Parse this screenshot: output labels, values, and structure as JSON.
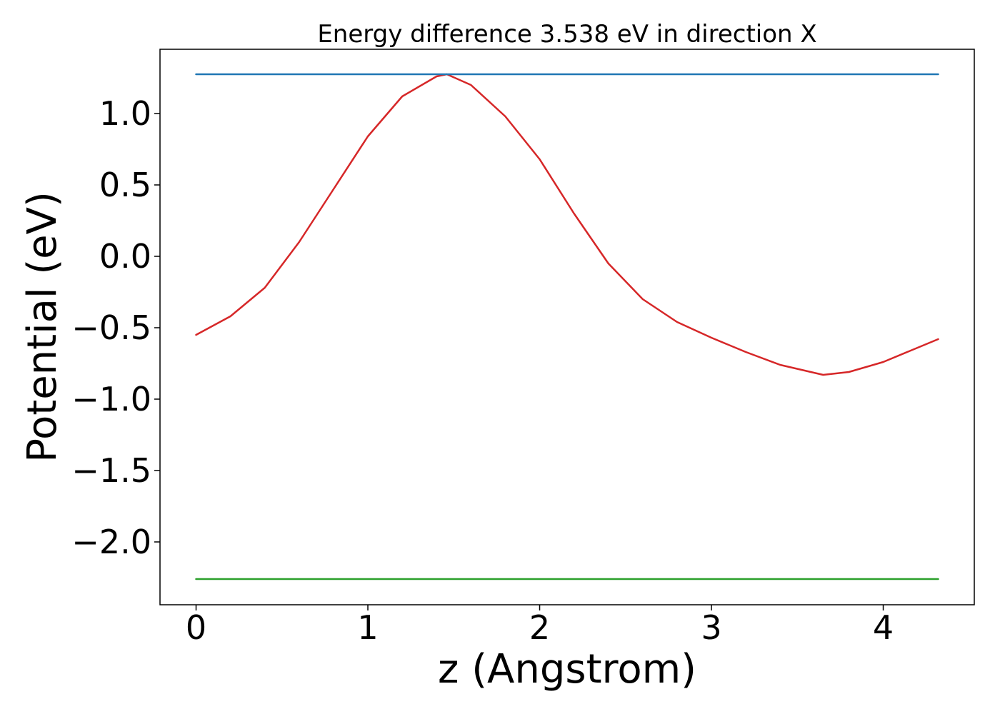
{
  "chart_data": {
    "type": "line",
    "title": "Energy difference 3.538 eV in direction X",
    "xlabel": "z (Angstrom)",
    "ylabel": "Potential (eV)",
    "xlim": [
      -0.21,
      4.53
    ],
    "ylim": [
      -2.44,
      1.45
    ],
    "x_ticks": [
      0,
      1,
      2,
      3,
      4
    ],
    "x_tick_labels": [
      "0",
      "1",
      "2",
      "3",
      "4"
    ],
    "y_ticks": [
      1.0,
      0.5,
      0.0,
      -0.5,
      -1.0,
      -1.5,
      -2.0
    ],
    "y_tick_labels": [
      "1.0",
      "0.5",
      "0.0",
      "−0.5",
      "−1.0",
      "−1.5",
      "−2.0"
    ],
    "grid": false,
    "series": [
      {
        "color": "#d62728",
        "x": [
          0,
          0.2,
          0.4,
          0.6,
          0.8,
          1.0,
          1.2,
          1.4,
          1.46,
          1.6,
          1.8,
          2.0,
          2.2,
          2.4,
          2.6,
          2.8,
          3.0,
          3.2,
          3.4,
          3.65,
          3.8,
          4.0,
          4.2,
          4.32
        ],
        "y": [
          -0.55,
          -0.42,
          -0.22,
          0.1,
          0.47,
          0.84,
          1.12,
          1.26,
          1.275,
          1.2,
          0.98,
          0.68,
          0.3,
          -0.05,
          -0.3,
          -0.46,
          -0.57,
          -0.67,
          -0.76,
          -0.83,
          -0.81,
          -0.74,
          -0.64,
          -0.58
        ]
      },
      {
        "color": "#1f77b4",
        "x": [
          0,
          4.32
        ],
        "y": [
          1.275,
          1.275
        ]
      },
      {
        "color": "#2ca02c",
        "x": [
          0,
          4.32
        ],
        "y": [
          -2.26,
          -2.26
        ]
      }
    ]
  }
}
